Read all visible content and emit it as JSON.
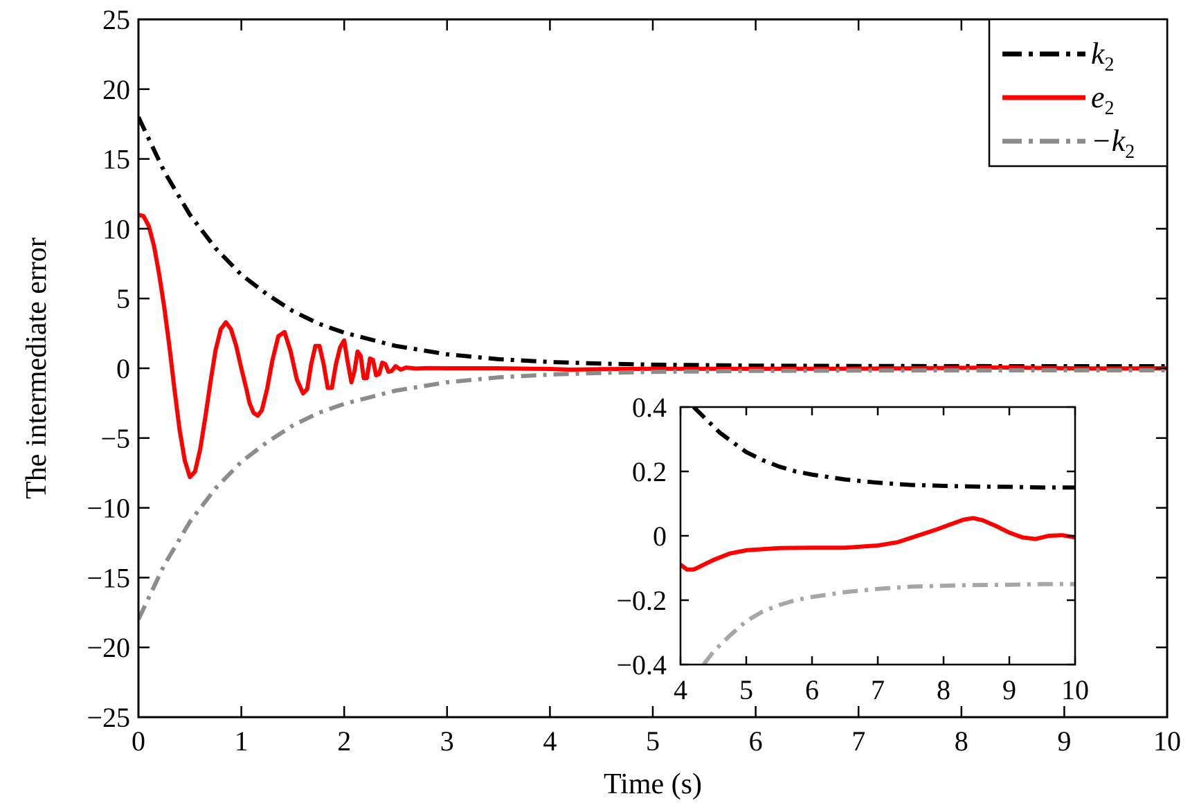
{
  "chart_data": [
    {
      "type": "line",
      "xlabel": "Time (s)",
      "ylabel": "The intermediate error",
      "xlim": [
        0,
        10
      ],
      "ylim": [
        -25,
        25
      ],
      "xticks": [
        "0",
        "1",
        "2",
        "3",
        "4",
        "5",
        "6",
        "7",
        "8",
        "9",
        "10"
      ],
      "yticks": [
        "25",
        "20",
        "15",
        "10",
        "5",
        "0",
        "−5",
        "−10",
        "−15",
        "−20",
        "−25"
      ],
      "grid": false,
      "legend_position": "top-right",
      "series": [
        {
          "name": "k2",
          "legend_main": "k",
          "legend_sub": "2",
          "color": "#000000",
          "style": "dash-dot",
          "x": [
            0,
            0.25,
            0.5,
            0.75,
            1.0,
            1.25,
            1.5,
            1.75,
            2.0,
            2.5,
            3.0,
            3.5,
            4.0,
            4.5,
            5.0,
            6.0,
            7.0,
            8.0,
            9.0,
            10.0
          ],
          "y": [
            18.0,
            14.1,
            11.0,
            8.6,
            6.7,
            5.3,
            4.1,
            3.2,
            2.55,
            1.6,
            1.0,
            0.65,
            0.45,
            0.33,
            0.26,
            0.19,
            0.165,
            0.155,
            0.15,
            0.15
          ]
        },
        {
          "name": "e2",
          "legend_main": "e",
          "legend_sub": "2",
          "color": "#ff0000",
          "style": "solid",
          "x": [
            0,
            0.05,
            0.1,
            0.15,
            0.2,
            0.25,
            0.3,
            0.35,
            0.4,
            0.45,
            0.5,
            0.55,
            0.6,
            0.65,
            0.7,
            0.75,
            0.8,
            0.85,
            0.9,
            0.95,
            1.0,
            1.05,
            1.08,
            1.12,
            1.16,
            1.2,
            1.25,
            1.3,
            1.36,
            1.42,
            1.48,
            1.54,
            1.6,
            1.64,
            1.68,
            1.72,
            1.76,
            1.8,
            1.84,
            1.88,
            1.92,
            1.96,
            2.0,
            2.03,
            2.07,
            2.1,
            2.13,
            2.16,
            2.19,
            2.22,
            2.25,
            2.28,
            2.31,
            2.34,
            2.37,
            2.4,
            2.43,
            2.46,
            2.5,
            2.55,
            2.6,
            2.7,
            2.8,
            3.0,
            3.5,
            4.0,
            4.2,
            4.5,
            5.0,
            6.0,
            7.0,
            7.5,
            8.0,
            8.4,
            8.8,
            9.2,
            9.6,
            10.0
          ],
          "y": [
            11.0,
            10.9,
            10.2,
            8.8,
            6.8,
            4.4,
            1.6,
            -1.5,
            -4.4,
            -6.6,
            -7.8,
            -7.4,
            -5.8,
            -3.5,
            -1.0,
            1.3,
            2.8,
            3.3,
            2.8,
            1.6,
            0.0,
            -1.5,
            -2.5,
            -3.2,
            -3.4,
            -3.0,
            -1.5,
            0.5,
            2.3,
            2.6,
            1.2,
            -0.8,
            -1.8,
            -1.5,
            0.3,
            1.6,
            1.6,
            0.3,
            -1.4,
            -1.4,
            0.3,
            1.5,
            2.0,
            0.6,
            -1.0,
            -0.2,
            1.2,
            0.9,
            -0.7,
            -0.7,
            0.7,
            0.6,
            -0.5,
            -0.4,
            0.4,
            0.3,
            -0.25,
            -0.2,
            0.15,
            -0.1,
            0.05,
            -0.02,
            0.01,
            0.0,
            0.0,
            -0.05,
            -0.1,
            -0.06,
            -0.04,
            -0.04,
            -0.03,
            0.0,
            0.03,
            0.055,
            0.02,
            -0.01,
            -0.01,
            0.0
          ]
        },
        {
          "name": "−k2",
          "legend_main": "−k",
          "legend_sub": "2",
          "color": "#8c8c8c",
          "style": "dash-dot",
          "x": [
            0,
            0.25,
            0.5,
            0.75,
            1.0,
            1.25,
            1.5,
            1.75,
            2.0,
            2.5,
            3.0,
            3.5,
            4.0,
            4.5,
            5.0,
            6.0,
            7.0,
            8.0,
            9.0,
            10.0
          ],
          "y": [
            -18.0,
            -14.1,
            -11.0,
            -8.6,
            -6.7,
            -5.3,
            -4.1,
            -3.2,
            -2.55,
            -1.6,
            -1.0,
            -0.65,
            -0.45,
            -0.33,
            -0.26,
            -0.19,
            -0.165,
            -0.155,
            -0.15,
            -0.15
          ]
        }
      ]
    },
    {
      "type": "line",
      "role": "inset",
      "xlim": [
        4,
        10
      ],
      "ylim": [
        -0.4,
        0.4
      ],
      "xticks": [
        "4",
        "5",
        "6",
        "7",
        "8",
        "9",
        "10"
      ],
      "yticks": [
        "0.4",
        "0.2",
        "0",
        "−0.2",
        "−0.4"
      ],
      "grid": false,
      "series": [
        {
          "name": "k2",
          "color": "#000000",
          "style": "dash-dot",
          "x": [
            4.2,
            4.4,
            4.6,
            4.8,
            5.0,
            5.25,
            5.5,
            5.75,
            6.0,
            6.5,
            7.0,
            7.5,
            8.0,
            8.5,
            9.0,
            9.5,
            10.0
          ],
          "y": [
            0.4,
            0.36,
            0.32,
            0.29,
            0.26,
            0.235,
            0.215,
            0.2,
            0.19,
            0.175,
            0.165,
            0.158,
            0.155,
            0.153,
            0.152,
            0.15,
            0.15
          ]
        },
        {
          "name": "e2",
          "color": "#ff0000",
          "style": "solid",
          "x": [
            4.0,
            4.1,
            4.2,
            4.3,
            4.5,
            4.75,
            5.0,
            5.5,
            6.0,
            6.5,
            7.0,
            7.3,
            7.6,
            7.9,
            8.1,
            8.3,
            8.45,
            8.6,
            8.8,
            9.0,
            9.2,
            9.4,
            9.6,
            9.8,
            10.0
          ],
          "y": [
            -0.09,
            -0.105,
            -0.105,
            -0.095,
            -0.075,
            -0.055,
            -0.045,
            -0.038,
            -0.037,
            -0.037,
            -0.03,
            -0.02,
            0.0,
            0.02,
            0.035,
            0.05,
            0.055,
            0.048,
            0.03,
            0.01,
            -0.005,
            -0.01,
            0.0,
            0.002,
            -0.005
          ]
        },
        {
          "name": "−k2",
          "color": "#a6a6a6",
          "style": "dash-dot",
          "x": [
            4.35,
            4.5,
            4.75,
            5.0,
            5.25,
            5.5,
            5.75,
            6.0,
            6.5,
            7.0,
            7.5,
            8.0,
            8.5,
            9.0,
            9.5,
            10.0
          ],
          "y": [
            -0.4,
            -0.36,
            -0.31,
            -0.265,
            -0.235,
            -0.215,
            -0.2,
            -0.19,
            -0.175,
            -0.165,
            -0.158,
            -0.155,
            -0.153,
            -0.152,
            -0.15,
            -0.15
          ]
        }
      ]
    }
  ]
}
